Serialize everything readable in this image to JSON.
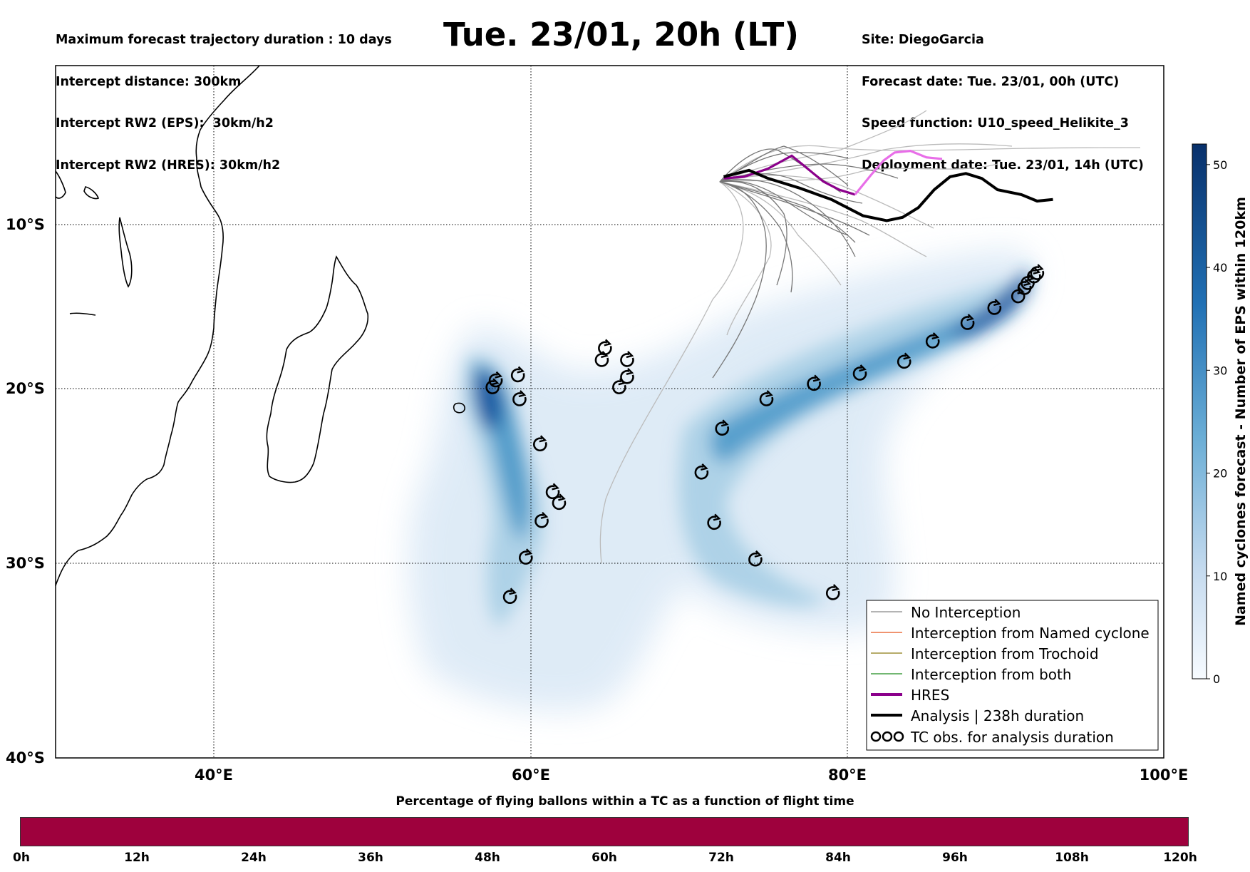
{
  "header_left": [
    "Maximum forecast trajectory duration : 10 days",
    "Intercept distance: 300km",
    "Intercept RW2 (EPS):  30km/h2",
    "Intercept RW2 (HRES): 30km/h2"
  ],
  "title": "Tue. 23/01, 20h (LT)",
  "header_right": [
    "Site: DiegoGarcia",
    "Forecast date: Tue. 23/01, 00h (UTC)",
    "Speed function: U10_speed_Helikite_3",
    "Deployment date: Tue. 23/01, 14h (UTC)"
  ],
  "map": {
    "lon_range": [
      30,
      100
    ],
    "lat_range": [
      -40,
      -0.6
    ],
    "lat_labels": [
      "10°S",
      "20°S",
      "30°S",
      "40°S"
    ],
    "lon_labels": [
      "40°E",
      "60°E",
      "80°E",
      "100°E"
    ],
    "gridlines": true
  },
  "legend": {
    "position": "lower-right",
    "items": [
      {
        "label": "No Interception",
        "color": "#888888"
      },
      {
        "label": "Interception from Named cyclone",
        "color": "#e8551b"
      },
      {
        "label": "Interception from Trochoid",
        "color": "#8a7a10"
      },
      {
        "label": "Interception from both",
        "color": "#1e8c1e"
      },
      {
        "label": "HRES",
        "color": "#8b008b"
      },
      {
        "label": "Analysis | 238h duration",
        "color": "#000000"
      },
      {
        "label": "TC obs. for analysis duration",
        "color": "#000000",
        "icon": "cyclone-symbol-icon"
      }
    ]
  },
  "colorbar": {
    "label": "Named cyclones forecast - Number of EPS within 120km",
    "ticks": [
      "0",
      "10",
      "20",
      "30",
      "40",
      "50"
    ],
    "range": [
      0,
      52
    ],
    "colormap": "Blues"
  },
  "timebar": {
    "title": "Percentage of flying ballons within a TC as a function of flight time",
    "ticks": [
      "0h",
      "12h",
      "24h",
      "36h",
      "48h",
      "60h",
      "72h",
      "84h",
      "96h",
      "108h",
      "120h"
    ],
    "fill_color": "#9e013d"
  },
  "chart_data": {
    "type": "map",
    "hres_track": [
      [
        72.2,
        -7.6
      ],
      [
        73.5,
        -7.5
      ],
      [
        75,
        -7.0
      ],
      [
        76.5,
        -6.2
      ],
      [
        77.5,
        -7.0
      ],
      [
        78.5,
        -7.8
      ],
      [
        79.5,
        -8.3
      ],
      [
        80.5,
        -8.6
      ],
      [
        81.5,
        -7.4
      ],
      [
        82.3,
        -6.5
      ],
      [
        83,
        -6.0
      ],
      [
        84,
        -5.9
      ],
      [
        85,
        -6.3
      ],
      [
        86,
        -6.4
      ]
    ],
    "analysis_track": [
      [
        72.2,
        -7.5
      ],
      [
        73.8,
        -7.1
      ],
      [
        75,
        -7.6
      ],
      [
        77,
        -8.2
      ],
      [
        79,
        -8.9
      ],
      [
        81,
        -9.9
      ],
      [
        82.5,
        -10.2
      ],
      [
        83.5,
        -10.0
      ],
      [
        84.5,
        -9.4
      ],
      [
        85.5,
        -8.3
      ],
      [
        86.5,
        -7.5
      ],
      [
        87.5,
        -7.3
      ],
      [
        88.5,
        -7.6
      ],
      [
        89.5,
        -8.3
      ],
      [
        91,
        -8.6
      ],
      [
        92,
        -9.0
      ],
      [
        93,
        -8.9
      ]
    ],
    "tc_obs": [
      [
        57.6,
        -20.2
      ],
      [
        57.8,
        -19.8
      ],
      [
        59.2,
        -19.5
      ],
      [
        59.3,
        -20.9
      ],
      [
        60.6,
        -23.5
      ],
      [
        61.4,
        -26.2
      ],
      [
        61.8,
        -26.8
      ],
      [
        60.7,
        -27.8
      ],
      [
        59.7,
        -29.8
      ],
      [
        58.7,
        -31.9
      ],
      [
        64.5,
        -18.6
      ],
      [
        64.7,
        -17.9
      ],
      [
        66.1,
        -18.6
      ],
      [
        66.1,
        -19.6
      ],
      [
        65.6,
        -20.2
      ],
      [
        72.1,
        -22.6
      ],
      [
        70.8,
        -25.1
      ],
      [
        71.6,
        -27.9
      ],
      [
        74.2,
        -29.9
      ],
      [
        79.1,
        -31.7
      ],
      [
        74.9,
        -20.9
      ],
      [
        77.9,
        -20.0
      ],
      [
        80.8,
        -19.4
      ],
      [
        83.6,
        -18.7
      ],
      [
        85.4,
        -17.5
      ],
      [
        87.6,
        -16.4
      ],
      [
        89.3,
        -15.5
      ],
      [
        90.8,
        -14.8
      ],
      [
        91.2,
        -14.3
      ],
      [
        91.4,
        -14.0
      ],
      [
        91.8,
        -13.6
      ],
      [
        92.0,
        -13.4
      ]
    ]
  }
}
